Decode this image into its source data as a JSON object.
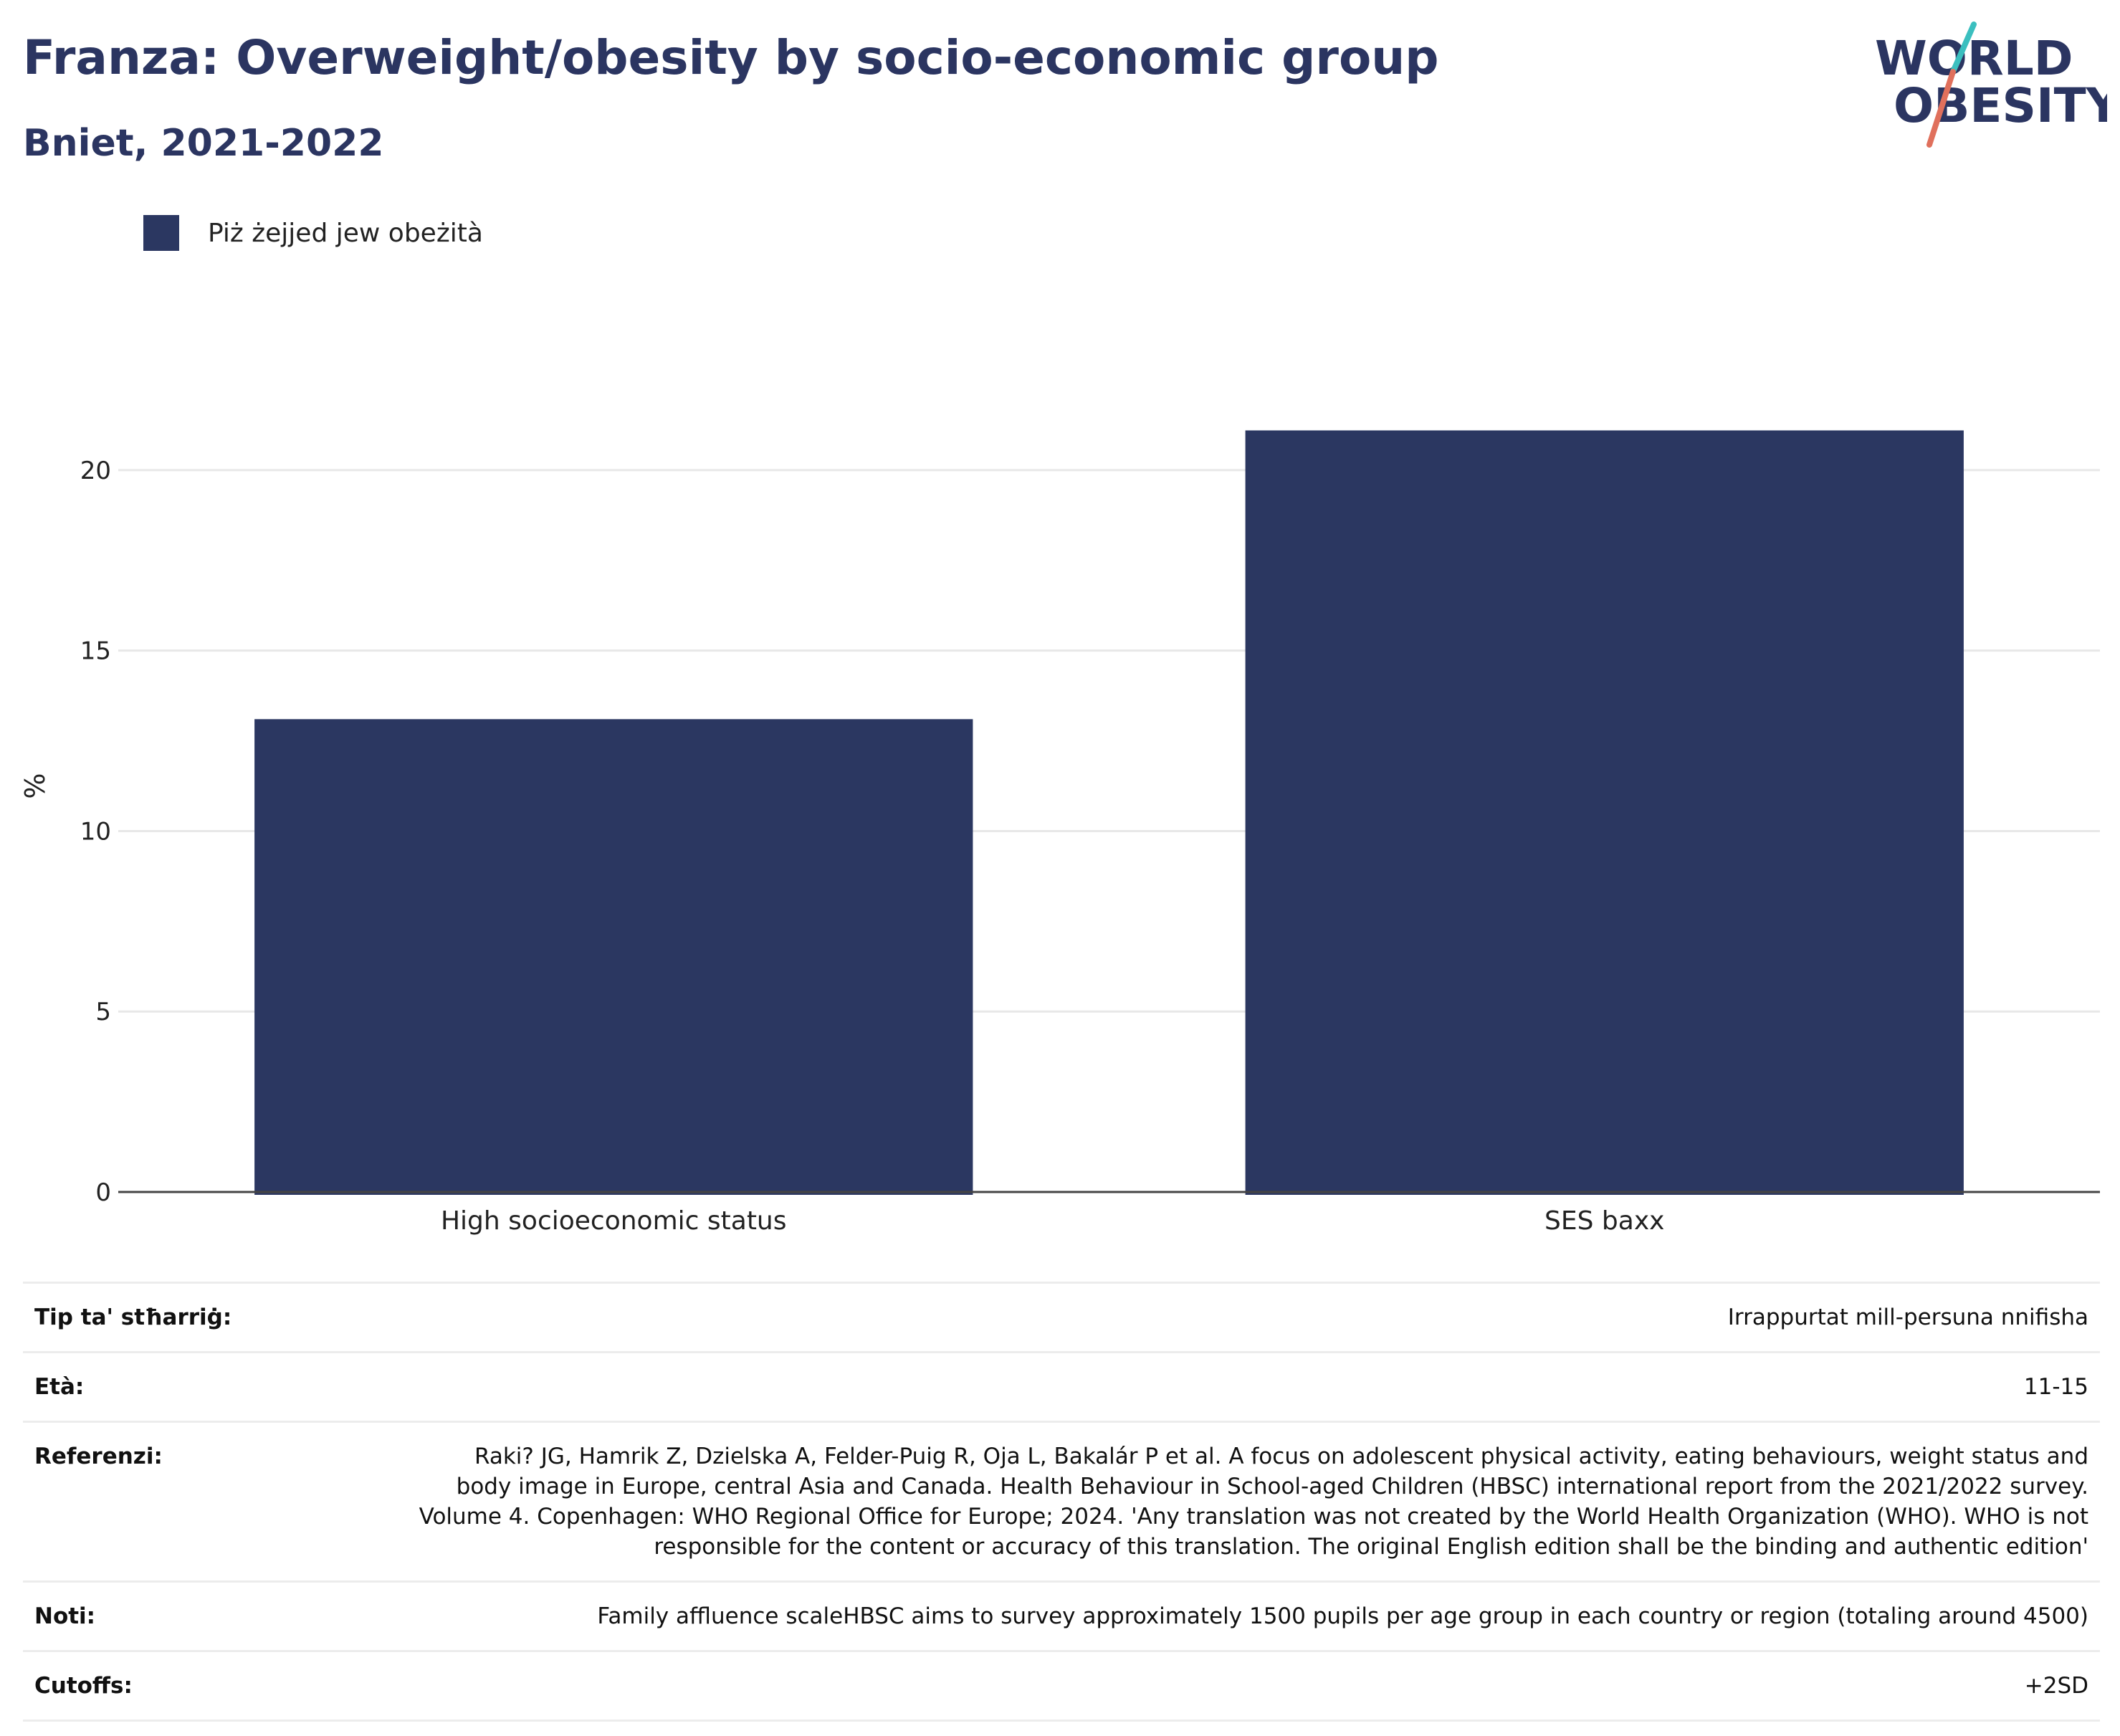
{
  "header": {
    "title": "Franza: Overweight/obesity by socio-economic group",
    "subtitle": "Bniet, 2021-2022"
  },
  "logo": {
    "line1": "WORLD",
    "line2": "OBESITY",
    "text_color": "#2b3561",
    "slash_colors": [
      "#3bbfbf",
      "#e0705c"
    ]
  },
  "chart_data": {
    "type": "bar",
    "categories": [
      "High socioeconomic status",
      "SES baxx"
    ],
    "series": [
      {
        "name": "Piż żejjed jew obeżità",
        "values": [
          13.1,
          21.1
        ],
        "color": "#2b3761"
      }
    ],
    "ylabel": "%",
    "xlabel": "",
    "ylim": [
      0,
      22.5
    ],
    "yticks": [
      0,
      5,
      10,
      15,
      20
    ],
    "grid": true,
    "legend": "top-left"
  },
  "info": [
    {
      "key": "Tip ta' stħarriġ:",
      "value": "Irrappurtat mill-persuna nnifisha"
    },
    {
      "key": "Età:",
      "value": "11-15"
    },
    {
      "key": "Referenzi:",
      "value": "Raki? JG, Hamrik Z, Dzielska A, Felder-Puig R, Oja L, Bakalár P et al. A focus on adolescent physical activity, eating behaviours, weight status and body image in Europe, central Asia and Canada. Health Behaviour in School-aged Children (HBSC) international report from the 2021/2022 survey. Volume 4. Copenhagen: WHO Regional Office for Europe; 2024. 'Any translation was not created by the World Health Organization (WHO). WHO is not responsible for the content or accuracy of this translation. The original English edition shall be the binding and authentic edition'"
    },
    {
      "key": "Noti:",
      "value": "Family affluence scaleHBSC aims to survey approximately 1500 pupils per age group in each country or region (totaling around 4500)"
    },
    {
      "key": "Cutoffs:",
      "value": "+2SD"
    }
  ]
}
